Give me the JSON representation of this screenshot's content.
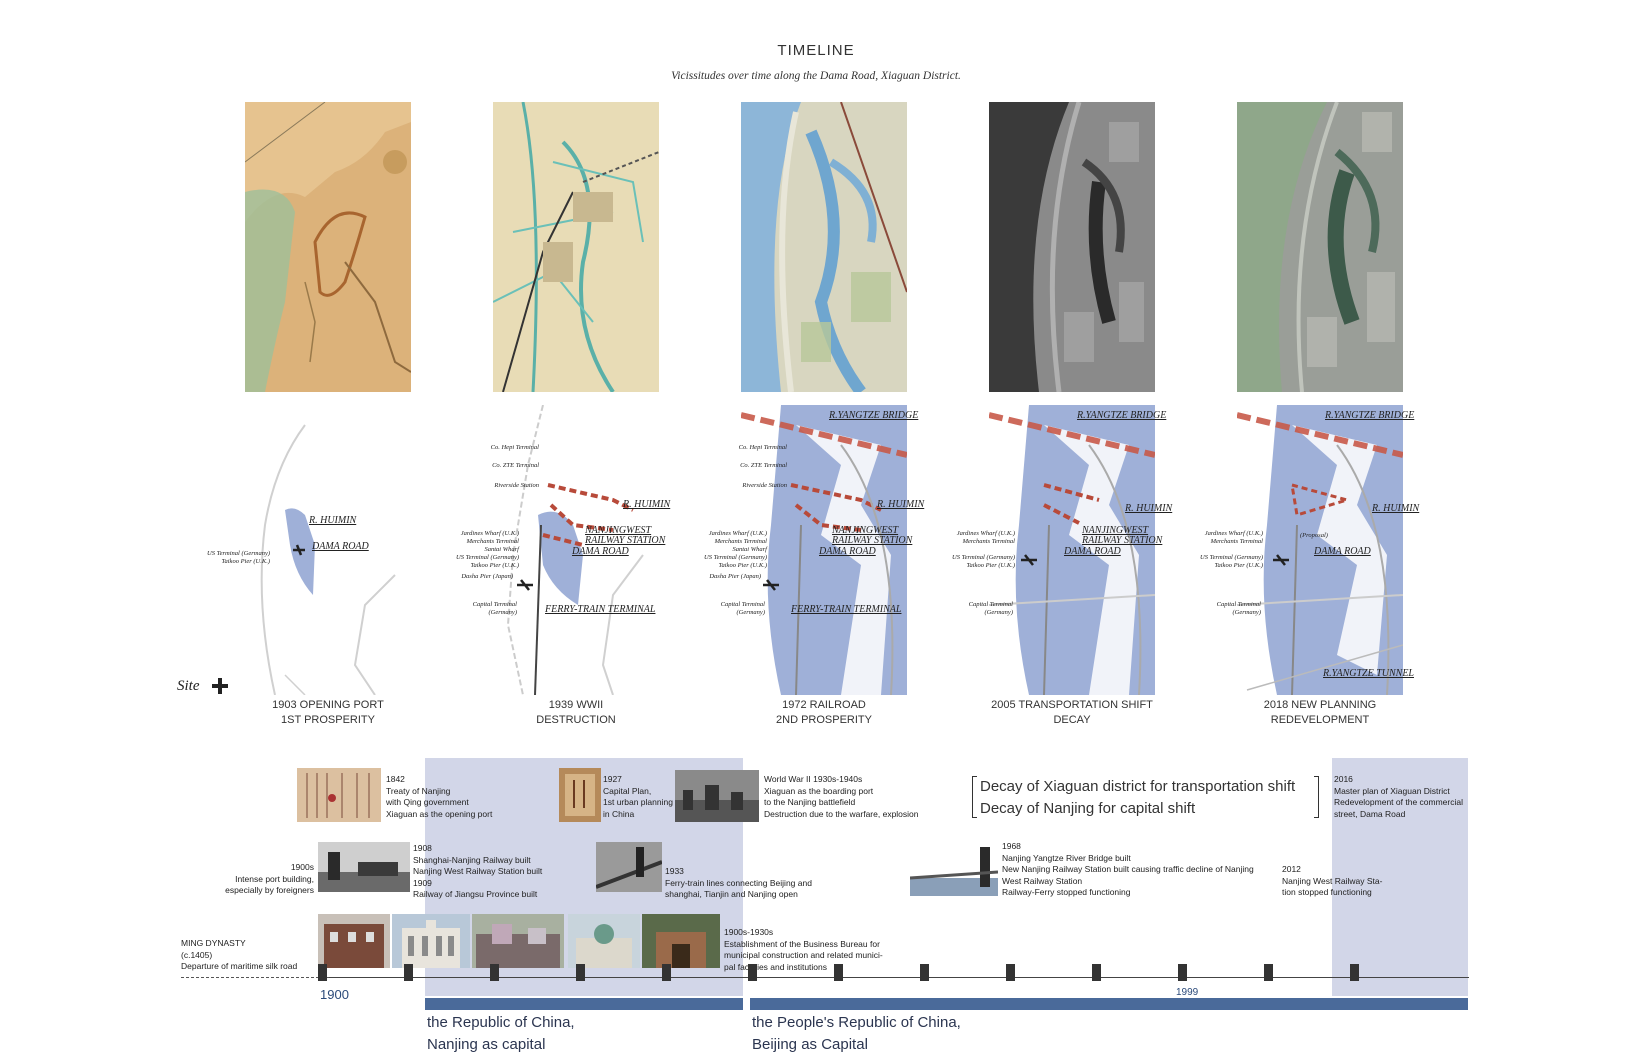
{
  "header": {
    "title": "TIMELINE",
    "subtitle": "Vicissitudes over time along the Dama Road, Xiaguan District."
  },
  "periods": [
    {
      "caption_line1": "1903 OPENING PORT",
      "caption_line2": "1ST PROSPERITY"
    },
    {
      "caption_line1": "1939 WWII",
      "caption_line2": "DESTRUCTION"
    },
    {
      "caption_line1": "1972 RAILROAD",
      "caption_line2": "2ND PROSPERITY"
    },
    {
      "caption_line1": "2005 TRANSPORTATION SHIFT",
      "caption_line2": "DECAY"
    },
    {
      "caption_line1": "2018 NEW PLANNING",
      "caption_line2": "REDEVELOPMENT"
    }
  ],
  "map_labels": {
    "m1": {
      "huimin": "R. HUIMIN",
      "dama": "DAMA ROAD",
      "us1": "US Terminal (Germany)",
      "us2": "Taikoo Pier (U.K.)"
    },
    "m2": {
      "hepi": "Co. Hepi Terminal",
      "zte": "Co. ZTE Terminal",
      "riverside": "Riverside Station",
      "huimin": "R. HUIMIN",
      "nw1": "NANJINGWEST",
      "nw2": "RAILWAY STATION",
      "dama": "DAMA ROAD",
      "jw1": "Jardines Wharf (U.K.)",
      "jw2": "Merchants Terminal",
      "jw3": "Santai Wharf",
      "jw4": "US Terminal (Germany)",
      "jw5": "Taikoo Pier (U.K.)",
      "dasha": "Dasha Pier (Japan)",
      "cap1": "Capital Terminal",
      "cap2": "(Germany)",
      "ferry": "FERRY-TRAIN TERMINAL"
    },
    "m3": {
      "bridge": "R.YANGTZE BRIDGE",
      "hepi": "Co. Hepi Terminal",
      "zte": "Co. ZTE Terminal",
      "riverside": "Riverside Station",
      "huimin": "R. HUIMIN",
      "nw1": "NANJINGWEST",
      "nw2": "RAILWAY STATION",
      "dama": "DAMA ROAD",
      "jw1": "Jardines Wharf (U.K.)",
      "jw2": "Merchants Terminal",
      "jw3": "Santai Wharf",
      "jw4": "US Terminal (Germany)",
      "jw5": "Taikoo Pier (U.K.)",
      "dasha": "Dasha Pier (Japan)",
      "cap1": "Capital Terminal",
      "cap2": "(Germany)",
      "ferry": "FERRY-TRAIN TERMINAL"
    },
    "m4": {
      "bridge": "R.YANGTZE BRIDGE",
      "huimin": "R. HUIMIN",
      "nw1": "NANJINGWEST",
      "nw2": "RAILWAY STATION",
      "dama": "DAMA ROAD",
      "jw1": "Jardines Wharf (U.K.)",
      "jw2": "Merchants Terminal",
      "jw4": "US Terminal (Germany)",
      "jw5": "Taikoo Pier (U.K.)",
      "cap1": "Capital Terminal",
      "cap2": "(Germany)"
    },
    "m5": {
      "bridge": "R.YANGTZE BRIDGE",
      "huimin": "R. HUIMIN",
      "dama": "DAMA ROAD",
      "proposal": "(Proposal)",
      "jw1": "Jardines Wharf (U.K.)",
      "jw2": "Merchants Terminal",
      "jw4": "US Terminal (Germany)",
      "jw5": "Taikoo Pier (U.K.)",
      "cap1": "Capital Terminal",
      "cap2": "(Germany)",
      "tunnel": "R.YANGTZE TUNNEL"
    }
  },
  "legend": {
    "site_label": "Site"
  },
  "events": {
    "e1842": [
      "1842",
      "Treaty of Nanjing",
      "with Qing government",
      "Xiaguan as the opening port"
    ],
    "e1927": [
      "1927",
      "Capital Plan,",
      "1st urban planning",
      "in China"
    ],
    "ewwii": [
      "World War II 1930s-1940s",
      "Xiaguan as the boarding port",
      "to the Nanjing battlefield",
      "Destruction due to the warfare, explosion"
    ],
    "e2016": [
      "2016",
      "Master plan of Xiaguan District",
      "Redevelopment of the commercial",
      "street, Dama Road"
    ],
    "e1900s": [
      "1900s",
      "Intense port building,",
      "especially by foreigners"
    ],
    "e1908": [
      "1908",
      "Shanghai-Nanjing Railway built",
      "Nanjing West Railway Station built",
      "1909",
      "Railway of Jiangsu Province built"
    ],
    "e1933": [
      "1933",
      "Ferry-train lines connecting Beijing and",
      "shanghai, Tianjin and Nanjing open"
    ],
    "e1968": [
      "1968",
      "Nanjing Yangtze River Bridge built",
      "New Nanjing Railway Station built causing traffic decline of Nanjing",
      "West Railway Station",
      "Railway-Ferry stopped functioning"
    ],
    "e2012": [
      "2012",
      "Nanjing West Railway Sta-",
      "tion stopped functioning"
    ],
    "eming": [
      "MING DYNASTY",
      "(c.1405)",
      "Departure of maritime silk road"
    ],
    "e1900s1930s": [
      "1900s-1930s",
      "Establishment of the Business Bureau for",
      "municipal construction and related munici-",
      "pal facilities and institutions"
    ]
  },
  "decay_note": {
    "line1": "Decay of Xiaguan district for transportation shift",
    "line2": "Decay of Nanjing for capital shift"
  },
  "axis": {
    "start_label": "1900",
    "end_label": "1999"
  },
  "eras": [
    {
      "line1": "the Republic of China,",
      "line2": "Nanjing as capital"
    },
    {
      "line1": "the People's Republic of China,",
      "line2": "Beijing as Capital"
    }
  ],
  "colors": {
    "era_shade": "#d2d6e8",
    "era_bar": "#4a6a9a",
    "map_water": "#9fb0d8",
    "route_red": "#b84a3a"
  }
}
